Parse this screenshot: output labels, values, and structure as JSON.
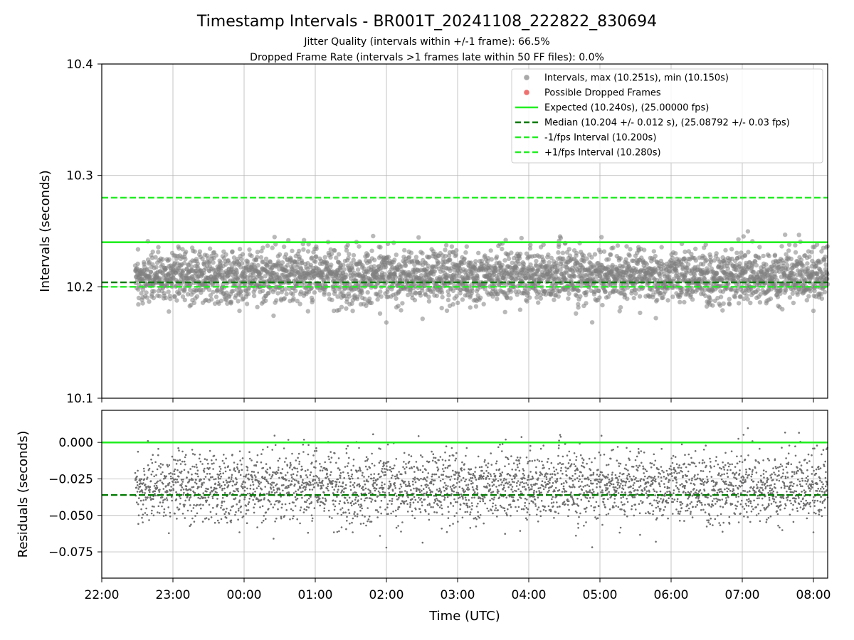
{
  "chart_data": {
    "type": "scatter",
    "title": "Timestamp Intervals - BR001T_20241108_222822_830694",
    "subtitle_lines": [
      "Jitter Quality (intervals within +/-1 frame): 66.5%",
      "Dropped Frame Rate (intervals >1 frames late within 50 FF files): 0.0%"
    ],
    "xlabel": "Time (UTC)",
    "x_tick_labels": [
      "22:00",
      "23:00",
      "00:00",
      "01:00",
      "02:00",
      "03:00",
      "04:00",
      "05:00",
      "06:00",
      "07:00",
      "08:00"
    ],
    "x_range_hours_from_first_tick": [
      0,
      10.2
    ],
    "data_x_range_hours_from_first_tick": [
      0.47,
      10.2
    ],
    "point_count": 3500,
    "colors": {
      "points": "#808080",
      "dropped": "#ff4d4d",
      "expected": "#22ee22",
      "median": "#007a00",
      "fps_bounds": "#22ee22"
    },
    "legend_placement": "top-right",
    "legend": [
      {
        "label": "Intervals, max (10.251s), min (10.150s)",
        "kind": "dot",
        "color": "#a8a8a8"
      },
      {
        "label": "Possible Dropped Frames",
        "kind": "dot",
        "color": "#f07070"
      },
      {
        "label": "Expected (10.240s), (25.00000 fps)",
        "kind": "solid",
        "color": "#22ee22"
      },
      {
        "label": "Median (10.204 +/- 0.012 s), (25.08792 +/- 0.03 fps)",
        "kind": "dashed",
        "color": "#007a00"
      },
      {
        "label": "-1/fps Interval (10.200s)",
        "kind": "dashed",
        "color": "#22ee22"
      },
      {
        "label": "+1/fps Interval (10.280s)",
        "kind": "dashed",
        "color": "#22ee22"
      }
    ],
    "intervals_panel": {
      "ylabel": "Intervals (seconds)",
      "ylim": [
        10.1,
        10.4
      ],
      "y_ticks": [
        10.1,
        10.2,
        10.3,
        10.4
      ],
      "y_tick_labels": [
        "10.1",
        "10.2",
        "10.3",
        "10.4"
      ],
      "grid": true,
      "expected": 10.24,
      "median": 10.204,
      "minus_fps": 10.2,
      "plus_fps": 10.28,
      "max": 10.251,
      "min": 10.15,
      "spread_std": 0.012
    },
    "residuals_panel": {
      "ylabel": "Residuals (seconds)",
      "ylim": [
        -0.093,
        0.022
      ],
      "y_ticks": [
        -0.075,
        -0.05,
        -0.025,
        0.0
      ],
      "y_tick_labels": [
        "−0.075",
        "−0.050",
        "−0.025",
        "0.000"
      ],
      "grid": true,
      "zero_line": 0.0,
      "median_residual": -0.036
    }
  }
}
